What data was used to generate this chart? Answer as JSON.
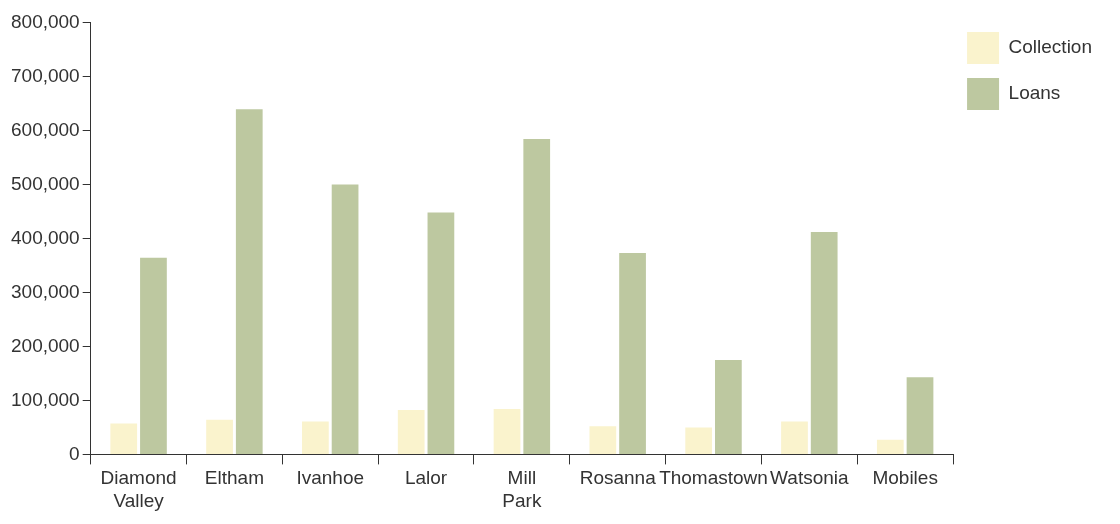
{
  "chart_data": {
    "type": "bar",
    "categories": [
      "Diamond Valley",
      "Eltham",
      "Ivanhoe",
      "Lalor",
      "Mill Park",
      "Rosanna",
      "Thomastown",
      "Watsonia",
      "Mobiles"
    ],
    "series": [
      {
        "name": "Collection",
        "color": "#faf3cd",
        "values": [
          57000,
          64000,
          61000,
          82000,
          84000,
          52000,
          50000,
          61000,
          27000
        ]
      },
      {
        "name": "Loans",
        "color": "#bdc8a0",
        "values": [
          364000,
          639000,
          500000,
          448000,
          584000,
          373000,
          175000,
          412000,
          143000
        ]
      }
    ],
    "ylim": [
      0,
      800000
    ],
    "yticks": [
      {
        "value": 0,
        "label": "0"
      },
      {
        "value": 100000,
        "label": "100,000"
      },
      {
        "value": 200000,
        "label": "200,000"
      },
      {
        "value": 300000,
        "label": "300,000"
      },
      {
        "value": 400000,
        "label": "400,000"
      },
      {
        "value": 500000,
        "label": "500,000"
      },
      {
        "value": 600000,
        "label": "600,000"
      },
      {
        "value": 700000,
        "label": "700,000"
      },
      {
        "value": 800000,
        "label": "800,000"
      }
    ],
    "grid": false,
    "legend": "top right"
  }
}
